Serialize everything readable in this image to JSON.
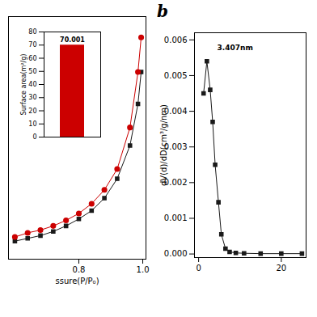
{
  "chart_data": [
    {
      "type": "line",
      "x": [
        0.6,
        0.64,
        0.68,
        0.72,
        0.76,
        0.8,
        0.84,
        0.88,
        0.92,
        0.96,
        0.985,
        0.995
      ],
      "series": [
        {
          "color": "#1a1a1a",
          "marker": "square",
          "values": [
            13,
            15,
            17,
            20,
            24,
            29,
            35,
            44,
            58,
            82,
            112,
            135
          ]
        },
        {
          "color": "#cc0000",
          "marker": "circle",
          "values": [
            16,
            19,
            21,
            24,
            28,
            33,
            40,
            50,
            65,
            95,
            135,
            160
          ]
        }
      ],
      "xlabel": "ssure(P/P₀)",
      "xlim": [
        0.58,
        1.01
      ],
      "ylim": [
        0,
        175
      ],
      "xticks": [
        0.8,
        {
          "value": 1.0,
          "label": "1.0"
        }
      ],
      "yticks": [],
      "tick_labels": "x"
    },
    {
      "type": "bar",
      "categories": [
        null
      ],
      "values": [
        70.001
      ],
      "color": "#cc0000",
      "ylabel": "Surface area(m²/g)",
      "ylim": [
        0,
        80
      ],
      "yticks": [
        0,
        10,
        20,
        30,
        40,
        50,
        60,
        70,
        80
      ],
      "data_labels": true
    },
    {
      "type": "line",
      "title": "b",
      "x": [
        1.2,
        2.0,
        2.8,
        3.4,
        4.0,
        4.8,
        5.5,
        6.5,
        7.5,
        9.0,
        11.0,
        15.0,
        20.0,
        25.0
      ],
      "series": [
        {
          "color": "#1a1a1a",
          "marker": "square",
          "values": [
            0.0045,
            0.0054,
            0.0046,
            0.0037,
            0.0025,
            0.00145,
            0.00055,
            0.00015,
            6e-05,
            3e-05,
            2e-05,
            1e-05,
            1e-05,
            1e-05
          ]
        }
      ],
      "ylabel": "dV(d)/dD(cm³/g/nm)",
      "xlim": [
        -1,
        26
      ],
      "ylim": [
        -0.0001,
        0.0062
      ],
      "xticks": [
        0,
        20
      ],
      "yticks": [
        {
          "value": 0.0,
          "label": "0.000"
        },
        {
          "value": 0.001,
          "label": "0.001"
        },
        {
          "value": 0.002,
          "label": "0.002"
        },
        {
          "value": 0.003,
          "label": "0.003"
        },
        {
          "value": 0.004,
          "label": "0.004"
        },
        {
          "value": 0.005,
          "label": "0.005"
        },
        {
          "value": 0.006,
          "label": "0.006"
        }
      ],
      "annotations": [
        {
          "text": "3.407nm",
          "x": 4.5,
          "y": 0.00585
        }
      ]
    }
  ]
}
